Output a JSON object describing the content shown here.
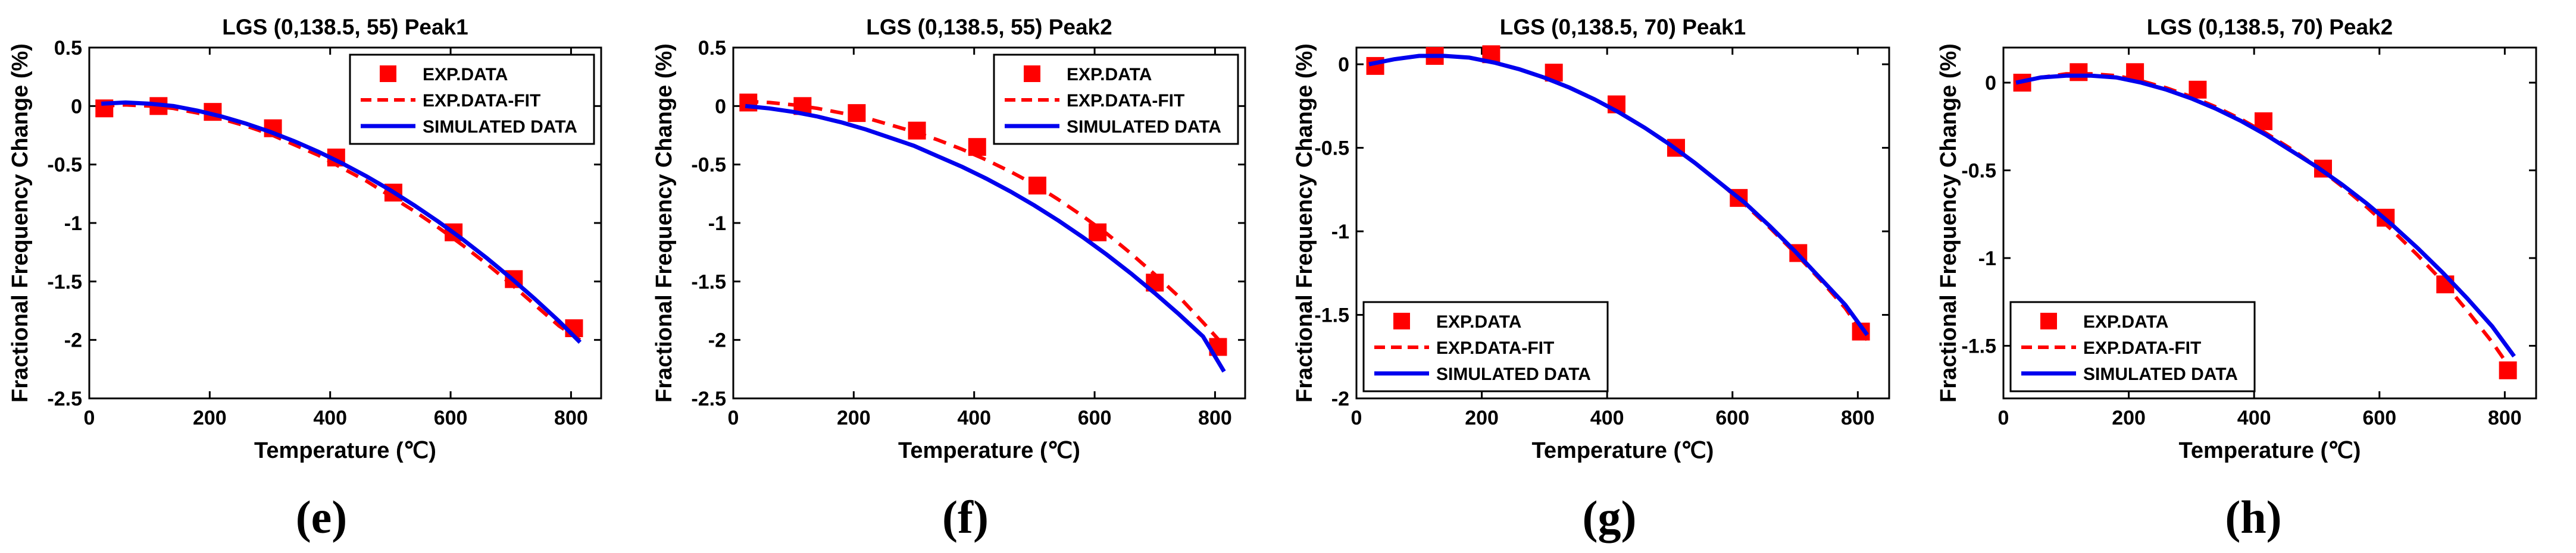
{
  "figure": {
    "captions": [
      "(e)",
      "(f)",
      "(g)",
      "(h)"
    ]
  },
  "colors": {
    "exp": "#ff0000",
    "fit": "#ff0000",
    "sim": "#0000ee",
    "axis": "#000000"
  },
  "chart_data": [
    {
      "type": "line",
      "title": "LGS (0,138.5, 55) Peak1",
      "xlabel": "Temperature (℃)",
      "ylabel": "Fractional Frequency Change (%)",
      "xlim": [
        0,
        850
      ],
      "ylim": [
        -2.5,
        0.5
      ],
      "xticks": [
        0,
        200,
        400,
        600,
        800
      ],
      "xtick_labels": [
        "0",
        "200",
        "400",
        "600",
        "800"
      ],
      "yticks": [
        -2.5,
        -2,
        -1.5,
        -1,
        -0.5,
        0,
        0.5
      ],
      "ytick_labels": [
        "-2.5",
        "-2",
        "-1.5",
        "-1",
        "-0.5",
        "0",
        "0.5"
      ],
      "legend_position": "top-right",
      "legend": [
        "EXP.DATA",
        "EXP.DATA-FIT",
        "SIMULATED DATA"
      ],
      "series": [
        {
          "name": "EXP.DATA",
          "style": "markers",
          "x": [
            25,
            115,
            205,
            305,
            410,
            505,
            605,
            705,
            805
          ],
          "y": [
            -0.02,
            0.0,
            -0.05,
            -0.19,
            -0.44,
            -0.74,
            -1.08,
            -1.48,
            -1.9
          ]
        },
        {
          "name": "EXP.DATA-FIT",
          "style": "dashed",
          "x": [
            20,
            60,
            100,
            140,
            180,
            220,
            260,
            300,
            340,
            380,
            420,
            460,
            500,
            540,
            580,
            620,
            660,
            700,
            740,
            780,
            815
          ],
          "y": [
            0.0,
            0.01,
            0.0,
            -0.02,
            -0.06,
            -0.11,
            -0.17,
            -0.24,
            -0.33,
            -0.42,
            -0.53,
            -0.64,
            -0.77,
            -0.9,
            -1.04,
            -1.19,
            -1.35,
            -1.52,
            -1.7,
            -1.88,
            -2.0
          ]
        },
        {
          "name": "SIMULATED DATA",
          "style": "solid",
          "x": [
            20,
            60,
            100,
            140,
            180,
            220,
            260,
            300,
            340,
            380,
            420,
            460,
            500,
            540,
            580,
            620,
            660,
            700,
            740,
            780,
            815
          ],
          "y": [
            0.02,
            0.03,
            0.02,
            0.0,
            -0.04,
            -0.09,
            -0.15,
            -0.22,
            -0.3,
            -0.39,
            -0.49,
            -0.6,
            -0.72,
            -0.85,
            -0.99,
            -1.14,
            -1.3,
            -1.47,
            -1.65,
            -1.84,
            -2.02
          ]
        }
      ]
    },
    {
      "type": "line",
      "title": "LGS (0,138.5, 55) Peak2",
      "xlabel": "Temperature (℃)",
      "ylabel": "Fractional Frequency Change (%)",
      "xlim": [
        0,
        850
      ],
      "ylim": [
        -2.5,
        0.5
      ],
      "xticks": [
        0,
        200,
        400,
        600,
        800
      ],
      "xtick_labels": [
        "0",
        "200",
        "400",
        "600",
        "800"
      ],
      "yticks": [
        -2.5,
        -2,
        -1.5,
        -1,
        -0.5,
        0,
        0.5
      ],
      "ytick_labels": [
        "-2.5",
        "-2",
        "-1.5",
        "-1",
        "-0.5",
        "0",
        "0.5"
      ],
      "legend_position": "top-right",
      "legend": [
        "EXP.DATA",
        "EXP.DATA-FIT",
        "SIMULATED DATA"
      ],
      "series": [
        {
          "name": "EXP.DATA",
          "style": "markers",
          "x": [
            25,
            115,
            205,
            305,
            405,
            505,
            605,
            700,
            805
          ],
          "y": [
            0.03,
            0.0,
            -0.06,
            -0.21,
            -0.35,
            -0.68,
            -1.08,
            -1.51,
            -2.06
          ]
        },
        {
          "name": "EXP.DATA-FIT",
          "style": "dashed",
          "x": [
            20,
            60,
            100,
            140,
            180,
            220,
            260,
            300,
            340,
            380,
            420,
            460,
            500,
            540,
            580,
            620,
            660,
            700,
            740,
            780,
            815
          ],
          "y": [
            0.04,
            0.03,
            0.01,
            -0.02,
            -0.06,
            -0.1,
            -0.16,
            -0.22,
            -0.29,
            -0.37,
            -0.46,
            -0.56,
            -0.67,
            -0.8,
            -0.94,
            -1.09,
            -1.26,
            -1.44,
            -1.63,
            -1.85,
            -2.05
          ]
        },
        {
          "name": "SIMULATED DATA",
          "style": "solid",
          "x": [
            20,
            60,
            100,
            140,
            180,
            220,
            260,
            300,
            340,
            380,
            420,
            460,
            500,
            540,
            580,
            620,
            660,
            700,
            740,
            780,
            815
          ],
          "y": [
            0.0,
            -0.02,
            -0.05,
            -0.09,
            -0.14,
            -0.2,
            -0.27,
            -0.34,
            -0.43,
            -0.52,
            -0.62,
            -0.73,
            -0.85,
            -0.98,
            -1.12,
            -1.27,
            -1.43,
            -1.6,
            -1.78,
            -1.97,
            -2.27
          ]
        }
      ]
    },
    {
      "type": "line",
      "title": "LGS (0,138.5, 70) Peak1",
      "xlabel": "Temperature (℃)",
      "ylabel": "Fractional Frequency Change (%)",
      "xlim": [
        0,
        850
      ],
      "ylim": [
        -2,
        0.1
      ],
      "xticks": [
        0,
        200,
        400,
        600,
        800
      ],
      "xtick_labels": [
        "0",
        "200",
        "400",
        "600",
        "800"
      ],
      "yticks": [
        -2,
        -1.5,
        -1,
        -0.5,
        0
      ],
      "ytick_labels": [
        "-2",
        "-1.5",
        "-1",
        "-0.5",
        "0"
      ],
      "legend_position": "bottom-left",
      "legend": [
        "EXP.DATA",
        "EXP.DATA-FIT",
        "SIMULATED DATA"
      ],
      "series": [
        {
          "name": "EXP.DATA",
          "style": "markers",
          "x": [
            30,
            125,
            215,
            315,
            415,
            510,
            610,
            705,
            805
          ],
          "y": [
            -0.01,
            0.05,
            0.06,
            -0.05,
            -0.24,
            -0.5,
            -0.8,
            -1.13,
            -1.6
          ]
        },
        {
          "name": "EXP.DATA-FIT",
          "style": "dashed",
          "x": [
            20,
            60,
            100,
            140,
            180,
            220,
            260,
            300,
            340,
            380,
            420,
            460,
            500,
            540,
            580,
            620,
            660,
            700,
            740,
            780,
            815
          ],
          "y": [
            0.0,
            0.03,
            0.05,
            0.05,
            0.04,
            0.01,
            -0.03,
            -0.08,
            -0.14,
            -0.21,
            -0.29,
            -0.38,
            -0.48,
            -0.59,
            -0.71,
            -0.84,
            -0.98,
            -1.13,
            -1.29,
            -1.46,
            -1.65
          ]
        },
        {
          "name": "SIMULATED DATA",
          "style": "solid",
          "x": [
            20,
            60,
            100,
            140,
            180,
            220,
            260,
            300,
            340,
            380,
            420,
            460,
            500,
            540,
            580,
            620,
            660,
            700,
            740,
            780,
            815
          ],
          "y": [
            0.0,
            0.03,
            0.05,
            0.05,
            0.04,
            0.01,
            -0.03,
            -0.08,
            -0.14,
            -0.21,
            -0.29,
            -0.38,
            -0.48,
            -0.59,
            -0.71,
            -0.83,
            -0.97,
            -1.12,
            -1.28,
            -1.44,
            -1.62
          ]
        }
      ]
    },
    {
      "type": "line",
      "title": "LGS (0,138.5, 70) Peak2",
      "xlabel": "Temperature (℃)",
      "ylabel": "Fractional Frequency Change (%)",
      "xlim": [
        0,
        850
      ],
      "ylim": [
        -1.8,
        0.2
      ],
      "xticks": [
        0,
        200,
        400,
        600,
        800
      ],
      "xtick_labels": [
        "0",
        "200",
        "400",
        "600",
        "800"
      ],
      "yticks": [
        -1.5,
        -1,
        -0.5,
        0
      ],
      "ytick_labels": [
        "-1.5",
        "-1",
        "-0.5",
        "0"
      ],
      "legend_position": "bottom-left",
      "legend": [
        "EXP.DATA",
        "EXP.DATA-FIT",
        "SIMULATED DATA"
      ],
      "series": [
        {
          "name": "EXP.DATA",
          "style": "markers",
          "x": [
            30,
            120,
            210,
            310,
            415,
            510,
            610,
            705,
            805
          ],
          "y": [
            0.0,
            0.06,
            0.06,
            -0.04,
            -0.22,
            -0.49,
            -0.77,
            -1.15,
            -1.64
          ]
        },
        {
          "name": "EXP.DATA-FIT",
          "style": "dashed",
          "x": [
            20,
            60,
            100,
            140,
            180,
            220,
            260,
            300,
            340,
            380,
            420,
            460,
            500,
            540,
            580,
            620,
            660,
            700,
            740,
            780,
            815
          ],
          "y": [
            0.0,
            0.03,
            0.05,
            0.05,
            0.04,
            0.01,
            -0.03,
            -0.08,
            -0.14,
            -0.21,
            -0.29,
            -0.38,
            -0.48,
            -0.59,
            -0.71,
            -0.84,
            -0.98,
            -1.13,
            -1.3,
            -1.48,
            -1.66
          ]
        },
        {
          "name": "SIMULATED DATA",
          "style": "solid",
          "x": [
            20,
            60,
            100,
            140,
            180,
            220,
            260,
            300,
            340,
            380,
            420,
            460,
            500,
            540,
            580,
            620,
            660,
            700,
            740,
            780,
            815
          ],
          "y": [
            0.0,
            0.03,
            0.04,
            0.04,
            0.03,
            0.0,
            -0.04,
            -0.09,
            -0.15,
            -0.22,
            -0.3,
            -0.39,
            -0.48,
            -0.58,
            -0.69,
            -0.81,
            -0.94,
            -1.08,
            -1.23,
            -1.39,
            -1.56
          ]
        }
      ]
    }
  ]
}
